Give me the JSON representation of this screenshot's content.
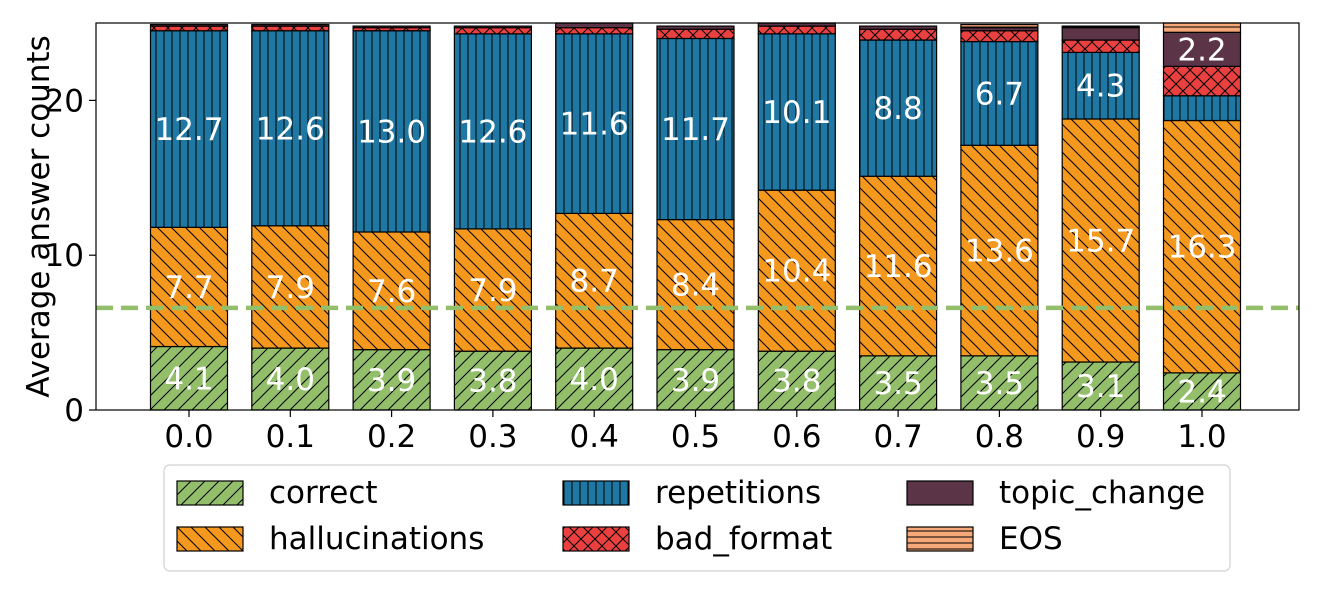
{
  "chart_data": {
    "type": "bar",
    "stacked": true,
    "title": "",
    "xlabel": "",
    "ylabel": "Average answer counts",
    "ylim": [
      0,
      25
    ],
    "yticks": [
      0,
      10,
      20
    ],
    "categories": [
      "0.0",
      "0.1",
      "0.2",
      "0.3",
      "0.4",
      "0.5",
      "0.6",
      "0.7",
      "0.8",
      "0.9",
      "1.0"
    ],
    "series": [
      {
        "name": "correct",
        "color": "#93bf6a",
        "hatch": "diag-up",
        "values": [
          4.1,
          4.0,
          3.9,
          3.8,
          4.0,
          3.9,
          3.8,
          3.5,
          3.5,
          3.1,
          2.4
        ],
        "labels": [
          "4.1",
          "4.0",
          "3.9",
          "3.8",
          "4.0",
          "3.9",
          "3.8",
          "3.5",
          "3.5",
          "3.1",
          "2.4"
        ]
      },
      {
        "name": "hallucinations",
        "color": "#f5981e",
        "hatch": "diag-down",
        "values": [
          7.7,
          7.9,
          7.6,
          7.9,
          8.7,
          8.4,
          10.4,
          11.6,
          13.6,
          15.7,
          16.3
        ],
        "labels": [
          "7.7",
          "7.9",
          "7.6",
          "7.9",
          "8.7",
          "8.4",
          "10.4",
          "11.6",
          "13.6",
          "15.7",
          "16.3"
        ]
      },
      {
        "name": "repetitions",
        "color": "#1f77a4",
        "hatch": "vertical",
        "values": [
          12.7,
          12.6,
          13.0,
          12.6,
          11.6,
          11.7,
          10.1,
          8.8,
          6.7,
          4.3,
          1.6
        ],
        "labels": [
          "12.7",
          "12.6",
          "13.0",
          "12.6",
          "11.6",
          "11.7",
          "10.1",
          "8.8",
          "6.7",
          "4.3",
          ""
        ]
      },
      {
        "name": "bad_format",
        "color": "#eb4040",
        "hatch": "cross",
        "values": [
          0.3,
          0.3,
          0.2,
          0.4,
          0.4,
          0.6,
          0.5,
          0.7,
          0.7,
          0.8,
          1.9
        ],
        "labels": [
          "",
          "",
          "",
          "",
          "",
          "",
          "",
          "",
          "",
          "",
          ""
        ]
      },
      {
        "name": "topic_change",
        "color": "#5b3447",
        "hatch": "none",
        "values": [
          0.1,
          0.1,
          0.1,
          0.1,
          0.3,
          0.2,
          0.2,
          0.2,
          0.2,
          0.8,
          2.2
        ],
        "labels": [
          "",
          "",
          "",
          "",
          "",
          "",
          "",
          "",
          "",
          "",
          "2.2"
        ]
      },
      {
        "name": "EOS",
        "color": "#f5a878",
        "hatch": "horizontal",
        "values": [
          0.0,
          0.0,
          0.0,
          0.0,
          0.0,
          0.0,
          0.0,
          0.0,
          0.2,
          0.1,
          0.6
        ],
        "labels": [
          "",
          "",
          "",
          "",
          "",
          "",
          "",
          "",
          "",
          "",
          ""
        ]
      }
    ],
    "reference_line": {
      "y": 6.6,
      "color": "#93bf6a",
      "style": "dashed"
    },
    "legend": {
      "placement": "bottom",
      "columns": 3,
      "order": [
        "correct",
        "hallucinations",
        "repetitions",
        "bad_format",
        "topic_change",
        "EOS"
      ]
    }
  }
}
